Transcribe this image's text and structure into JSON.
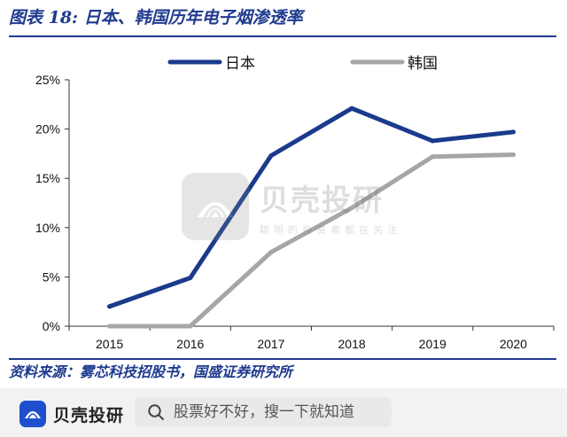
{
  "figure_title": "图表 18:  日本、韩国历年电子烟渗透率",
  "source_note": "资料来源：雾芯科技招股书，国盛证券研究所",
  "watermark": {
    "name": "贝壳投研",
    "slogan": "聪明的投资者都在关注"
  },
  "bottom_bar": {
    "brand_name": "贝壳投研",
    "search_placeholder": "股票好不好，搜一下就知道"
  },
  "colors": {
    "title_blue": "#1f3a8f",
    "japan": "#1a3a8c",
    "korea": "#a6a6a6",
    "brand_blue": "#1e4fcf"
  },
  "icons": {
    "brand": "shell-logo-icon",
    "search": "search-icon"
  },
  "chart_data": {
    "type": "line",
    "title": "",
    "categories": [
      "2015",
      "2016",
      "2017",
      "2018",
      "2019",
      "2020"
    ],
    "series": [
      {
        "name": "日本",
        "color": "#1a3a8c",
        "values": [
          2.0,
          4.9,
          17.3,
          22.1,
          18.8,
          19.7
        ]
      },
      {
        "name": "韩国",
        "color": "#a6a6a6",
        "values": [
          0.0,
          0.0,
          7.5,
          12.0,
          17.2,
          17.4
        ]
      }
    ],
    "y_ticks": [
      "0%",
      "5%",
      "10%",
      "15%",
      "20%",
      "25%"
    ],
    "y_tick_values": [
      0,
      5,
      10,
      15,
      20,
      25
    ],
    "ylim": [
      0,
      25
    ],
    "xlabel": "",
    "ylabel": "",
    "grid": false,
    "legend_position": "top"
  }
}
